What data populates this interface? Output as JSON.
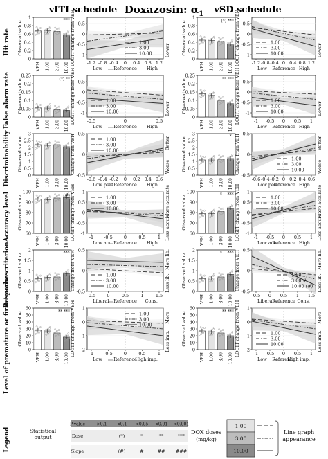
{
  "header": {
    "title": "Doxazosin: α",
    "title_sub": "1",
    "left_schedule": "vITI schedule",
    "right_schedule": "vSD schedule"
  },
  "colors": {
    "bar_fills": [
      "#ffffff",
      "#e3e3e3",
      "#bdbdbd",
      "#8a8a8a"
    ],
    "ribbon_fills": [
      "#ececec",
      "#dcdcdc",
      "#c9c9c9"
    ],
    "line_color": "#555555",
    "dots": "#9a9a9a"
  },
  "legend_entries": [
    "1.00",
    "3.00",
    "10.00"
  ],
  "rows": [
    {
      "name": "Hit rate",
      "bar_ylabel": "Observed value",
      "line_ylabel": "LOGIT change from VEH",
      "right_axis_top": "",
      "right_axis_bottom": "Lower",
      "bar_categories": [
        "VEH",
        "1.00",
        "3.00",
        "10.00"
      ],
      "left": {
        "bar_ylim": [
          0,
          1
        ],
        "bar_ticks": [
          "0",
          "0.2",
          "0.4",
          "0.6",
          "0.8",
          "1"
        ],
        "bar_values": [
          0.67,
          0.68,
          0.66,
          0.58
        ],
        "bar_stars": [
          "",
          "",
          "",
          "***"
        ],
        "bar_stars_inline": "",
        "line_ylim": [
          -1.2,
          0.8
        ],
        "line_yticks": [
          "-1",
          "-0.5",
          "0",
          "0.5"
        ],
        "line_xticks": [
          "-1.2",
          "-0.8",
          "-0.4",
          "0",
          "0.4",
          "0.8",
          "1.2"
        ],
        "line_xlabels": [
          "Low",
          "Reference",
          "High"
        ],
        "lines": [
          [
            -0.05,
            0.05
          ],
          [
            -0.35,
            0.15
          ],
          [
            -0.75,
            -0.2
          ]
        ],
        "legend_pos": "bottom-right"
      },
      "right": {
        "bar_ylim": [
          0,
          1
        ],
        "bar_ticks": [
          "0",
          "0.2",
          "0.4",
          "0.6",
          "0.8",
          "1"
        ],
        "bar_values": [
          0.45,
          0.44,
          0.42,
          0.36
        ],
        "bar_stars": [
          "",
          "",
          "",
          ""
        ],
        "bar_stars_inline": "(*) ***",
        "line_ylim": [
          -1.2,
          0.8
        ],
        "line_yticks": [
          "-1",
          "-0.5",
          "0",
          "0.5"
        ],
        "line_xticks": [
          "-1.2",
          "-0.8",
          "-0.4",
          "0",
          "0.4",
          "0.8",
          "1.2"
        ],
        "line_xlabels": [
          "Low",
          "Reference",
          "High"
        ],
        "lines": [
          [
            0.3,
            -0.05
          ],
          [
            0.35,
            -0.3
          ],
          [
            0.25,
            -0.6
          ]
        ],
        "legend_pos": "bottom-left"
      }
    },
    {
      "name": "False alarm rate",
      "bar_ylabel": "Observed value",
      "line_ylabel": "LOGIT change from VEH",
      "right_axis_top": "",
      "right_axis_bottom": "Lower",
      "bar_categories": [
        "VEH",
        "1.00",
        "3.00",
        "10.00"
      ],
      "left": {
        "bar_ylim": [
          0,
          0.25
        ],
        "bar_ticks": [
          "0",
          "0.05",
          "0.1",
          "0.15",
          "0.2",
          "0.25"
        ],
        "bar_values": [
          0.055,
          0.054,
          0.044,
          0.04
        ],
        "bar_stars": [
          "",
          "",
          "",
          ""
        ],
        "bar_stars_inline": "(*) **",
        "line_ylim": [
          -1.2,
          0.8
        ],
        "line_yticks": [
          "-1",
          "-0.5",
          "0",
          "0.5"
        ],
        "line_xticks": [
          "-0.5",
          "0",
          "0.5"
        ],
        "line_xlabels": [
          "Low",
          "Reference",
          "High"
        ],
        "lines": [
          [
            0.1,
            -0.15
          ],
          [
            -0.05,
            -0.35
          ],
          [
            -0.3,
            -0.55
          ]
        ],
        "legend_pos": "bottom-left"
      },
      "right": {
        "bar_ylim": [
          0,
          0.25
        ],
        "bar_ticks": [
          "0",
          "0.05",
          "0.1",
          "0.15",
          "0.2",
          "0.25"
        ],
        "bar_values": [
          0.14,
          0.13,
          0.1,
          0.08
        ],
        "bar_stars": [
          "",
          "",
          "",
          ""
        ],
        "bar_stars_inline": "** ***",
        "line_ylim": [
          -1.2,
          0.8
        ],
        "line_yticks": [
          "-1",
          "-0.5",
          "0",
          "0.5"
        ],
        "line_xticks": [
          "-1",
          "-0.5",
          "0",
          "0.5",
          "1"
        ],
        "line_xlabels": [
          "Low",
          "Reference",
          "High"
        ],
        "lines": [
          [
            0.05,
            -0.1
          ],
          [
            -0.05,
            -0.35
          ],
          [
            -0.25,
            -0.65
          ]
        ],
        "legend_pos": "bottom-left"
      }
    },
    {
      "name": "Discriminability",
      "bar_ylabel": "Observed value",
      "line_ylabel": "Change from VEH",
      "right_axis_top": "Better",
      "right_axis_bottom": "Worse",
      "bar_categories": [
        "VEH",
        "1.00",
        "3.00",
        "10.00"
      ],
      "left": {
        "bar_ylim": [
          0,
          3
        ],
        "bar_ticks": [
          "0",
          "0.5",
          "1",
          "1.5",
          "2",
          "2.5",
          "3"
        ],
        "bar_values": [
          2.2,
          2.15,
          2.2,
          2.05
        ],
        "bar_stars": [
          "",
          "",
          "",
          ""
        ],
        "bar_stars_inline": "",
        "line_ylim": [
          -0.5,
          0.5
        ],
        "line_yticks": [
          "-0.5",
          "0",
          "0.5"
        ],
        "line_xticks": [
          "-0.6",
          "-0.4",
          "-0.2",
          "0",
          "0.2",
          "0.4",
          "0.6"
        ],
        "line_xlabels": [
          "Low perf.",
          "Reference",
          "High"
        ],
        "lines": [
          [
            -0.05,
            0.05
          ],
          [
            -0.1,
            0.1
          ],
          [
            -0.2,
            0.15
          ]
        ],
        "legend_pos": "top-left"
      },
      "right": {
        "bar_ylim": [
          0,
          3
        ],
        "bar_ticks": [
          "0",
          "0.5",
          "1",
          "1.5",
          "2",
          "2.5",
          "3"
        ],
        "bar_values": [
          1.1,
          1.1,
          1.15,
          1.2
        ],
        "bar_stars": [
          "",
          "",
          "",
          "*"
        ],
        "bar_stars_inline": "",
        "line_ylim": [
          -0.5,
          0.5
        ],
        "line_yticks": [
          "-0.5",
          "0",
          "0.5"
        ],
        "line_xticks": [
          "-0.6",
          "-0.4",
          "-0.2",
          "0",
          "0.2",
          "0.4",
          "0.6"
        ],
        "line_xlabels": [
          "Low perf.",
          "Reference",
          "High"
        ],
        "lines": [
          [
            -0.05,
            0.1
          ],
          [
            -0.1,
            0.15
          ],
          [
            -0.15,
            0.25
          ]
        ],
        "legend_pos": "bottom-right"
      }
    },
    {
      "name": "Accuracy level",
      "bar_ylabel": "Observed value",
      "line_ylabel": "LOGIT change from VEH",
      "right_axis_top": "More accurate",
      "right_axis_bottom": "Less accurate",
      "bar_categories": [
        "VEH",
        "1.00",
        "3.00",
        "10.00"
      ],
      "left": {
        "bar_ylim": [
          60,
          100
        ],
        "bar_ticks": [
          "60",
          "70",
          "80",
          "90",
          "100"
        ],
        "bar_values": [
          93,
          92.5,
          94,
          94.5
        ],
        "bar_stars": [
          "",
          "",
          "",
          ""
        ],
        "bar_stars_inline": "(#)",
        "line_ylim": [
          -1,
          1
        ],
        "line_yticks": [
          "-1",
          "-0.5",
          "0",
          "0.5",
          "1"
        ],
        "line_xticks": [
          "-1",
          "-0.5",
          "0",
          "0.5",
          "1"
        ],
        "line_xlabels": [
          "Low acc.",
          "Reference",
          "High"
        ],
        "lines": [
          [
            0.05,
            -0.05
          ],
          [
            0.1,
            -0.15
          ],
          [
            0.15,
            -0.3
          ]
        ],
        "legend_pos": "top-left"
      },
      "right": {
        "bar_ylim": [
          60,
          100
        ],
        "bar_ticks": [
          "60",
          "70",
          "80",
          "90",
          "100"
        ],
        "bar_values": [
          79,
          79,
          81,
          84
        ],
        "bar_stars": [
          "",
          "",
          "*",
          "***"
        ],
        "bar_stars_inline": "",
        "line_ylim": [
          -1,
          1
        ],
        "line_yticks": [
          "-1",
          "-0.5",
          "0",
          "0.5",
          "1"
        ],
        "line_xticks": [
          "-1",
          "-0.5",
          "0",
          "0.5",
          "1"
        ],
        "line_xlabels": [
          "Low acc.",
          "Reference",
          "High"
        ],
        "lines": [
          [
            -0.1,
            0.2
          ],
          [
            -0.15,
            0.35
          ],
          [
            -0.3,
            0.55
          ]
        ],
        "legend_pos": "top-left"
      }
    },
    {
      "name": "Response criterion",
      "bar_ylabel": "Observed value",
      "line_ylabel": "Change from VEH",
      "right_axis_top": "More lib.",
      "right_axis_bottom": "Less lib.",
      "bar_categories": [
        "VEH",
        "1.00",
        "3.00",
        "10.00"
      ],
      "left": {
        "bar_ylim": [
          0,
          2
        ],
        "bar_ticks": [
          "0",
          "0.5",
          "1",
          "1.5",
          "2"
        ],
        "bar_values": [
          0.62,
          0.68,
          0.7,
          0.85
        ],
        "bar_stars": [
          "",
          "",
          "",
          "***"
        ],
        "bar_stars_inline": "",
        "line_ylim": [
          -0.5,
          0.5
        ],
        "line_yticks": [
          "-0.5",
          "0",
          "0.5"
        ],
        "line_xticks": [
          "-0.5",
          "0",
          "0.5",
          "1",
          "1.5"
        ],
        "line_xlabels": [
          "Liberal",
          "Reference",
          "Cons."
        ],
        "lines": [
          [
            0.05,
            -0.05
          ],
          [
            0.15,
            0.1
          ],
          [
            0.25,
            0.2
          ]
        ],
        "legend_pos": "bottom-left"
      },
      "right": {
        "bar_ylim": [
          0,
          2
        ],
        "bar_ticks": [
          "0",
          "0.5",
          "1",
          "1.5",
          "2"
        ],
        "bar_values": [
          0.62,
          0.65,
          0.7,
          0.82
        ],
        "bar_stars": [
          "",
          "",
          "*",
          "***"
        ],
        "bar_stars_inline": "",
        "line_ylim": [
          -0.5,
          0.5
        ],
        "line_yticks": [
          "-0.5",
          "0",
          "0.5"
        ],
        "line_xticks": [
          "-0.5",
          "0",
          "0.5",
          "1",
          "1.5"
        ],
        "line_xlabels": [
          "Liberal",
          "Reference",
          "Cons."
        ],
        "lines": [
          [
            0.05,
            -0.1
          ],
          [
            0.15,
            -0.2
          ],
          [
            0.35,
            -0.35
          ]
        ],
        "legend_pos": "bottom-right",
        "legend_labels": [
          "1.00",
          "3.00 #",
          "10.00 (#)"
        ]
      }
    },
    {
      "name": "Level of premature or first touches",
      "bar_ylabel": "Observed value",
      "line_ylabel": "LOGIT change from VEH",
      "right_axis_top": "More",
      "right_axis_bottom": "Less imp.",
      "bar_categories": [
        "VEH",
        "1.00",
        "3.00",
        "10.00"
      ],
      "left": {
        "bar_ylim": [
          0,
          60
        ],
        "bar_ticks": [
          "0",
          "10",
          "20",
          "30",
          "40",
          "50",
          "60"
        ],
        "bar_values": [
          28,
          27,
          24,
          18
        ],
        "bar_stars": [
          "",
          "",
          "",
          ""
        ],
        "bar_stars_inline": "** ***",
        "line_ylim": [
          -2,
          1
        ],
        "line_yticks": [
          "-2",
          "-1",
          "0",
          "1"
        ],
        "line_xticks": [
          "-1",
          "-0.5",
          "0",
          "0.5",
          "1"
        ],
        "line_xlabels": [
          "Low",
          "Reference",
          "High imp."
        ],
        "lines": [
          [
            0.1,
            -0.1
          ],
          [
            -0.05,
            -0.5
          ],
          [
            -0.3,
            -1.0
          ]
        ],
        "legend_pos": "top-right"
      },
      "right": {
        "bar_ylim": [
          0,
          60
        ],
        "bar_ticks": [
          "0",
          "10",
          "20",
          "30",
          "40",
          "50",
          "60"
        ],
        "bar_values": [
          27,
          26,
          24,
          20
        ],
        "bar_stars": [
          "",
          "",
          "",
          ""
        ],
        "bar_stars_inline": "** ***",
        "line_ylim": [
          -2,
          1
        ],
        "line_yticks": [
          "-2",
          "-1",
          "0",
          "1"
        ],
        "line_xticks": [
          "-1",
          "-0.5",
          "0",
          "0.5",
          "1"
        ],
        "line_xlabels": [
          "Low",
          "Reference",
          "High imp."
        ],
        "lines": [
          [
            0.2,
            -0.1
          ],
          [
            0.15,
            -0.5
          ],
          [
            0.05,
            -0.9
          ]
        ],
        "legend_pos": "bottom-left"
      }
    }
  ],
  "legend": {
    "title": "Legend",
    "statistical_output": "Statistical output",
    "table_header": [
      "P-value",
      ">0.1",
      "<0.1",
      "<0.05",
      "<0.01",
      "<0.001"
    ],
    "dose_row": [
      "Dose",
      "",
      "(*)",
      "*",
      "**",
      "***"
    ],
    "slope_row": [
      "Slope",
      "",
      "(#)",
      "#",
      "##",
      "###"
    ],
    "dox_doses": "DOX doses",
    "dox_units": "(mg/kg)",
    "dose_labels": [
      "1.00",
      "3.00",
      "10.00"
    ],
    "line_graph": "Line graph",
    "appearance": "appearance"
  }
}
